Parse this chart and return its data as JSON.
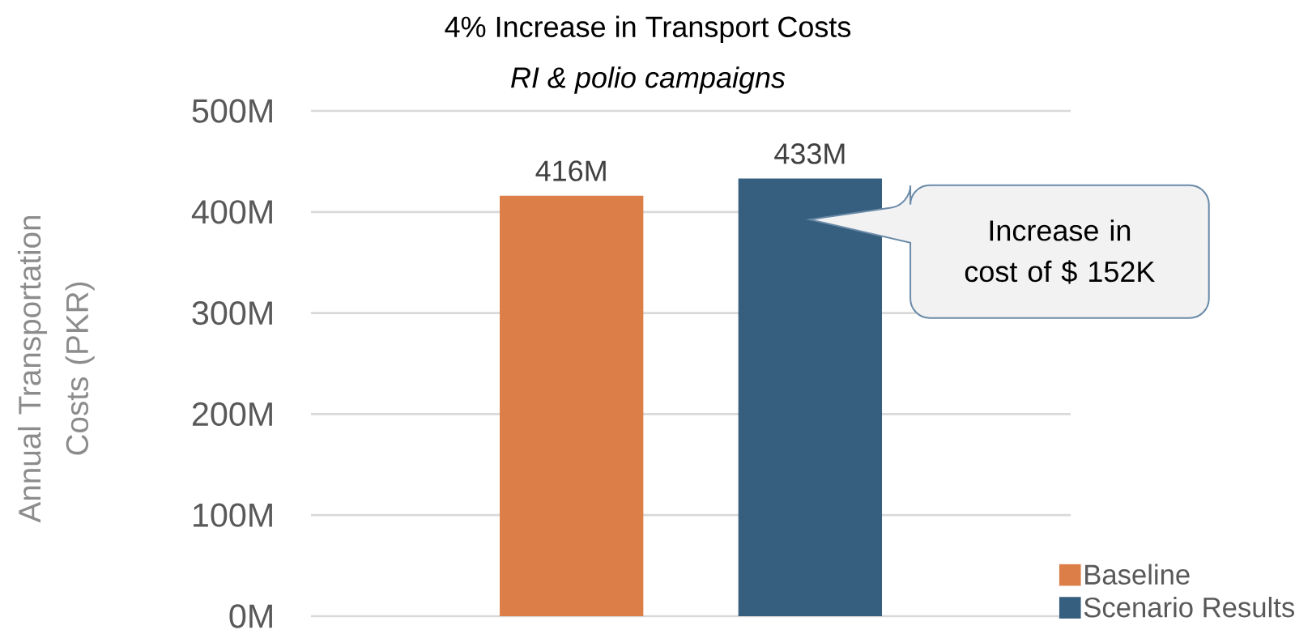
{
  "chart_data": {
    "type": "bar",
    "title": "4% Increase in Transport Costs",
    "subtitle": "RI & polio campaigns",
    "ylabel": "Annual Transportation Costs (PKR)",
    "categories": [
      null
    ],
    "series": [
      {
        "name": "Baseline",
        "color": "#dc7e47",
        "values": [
          416
        ],
        "value_labels": [
          "416M"
        ]
      },
      {
        "name": "Scenario Results",
        "color": "#365e7e",
        "values": [
          433
        ],
        "value_labels": [
          "433M"
        ]
      }
    ],
    "ylim": [
      0,
      500
    ],
    "yticks": [
      {
        "value": 0,
        "label": "0M"
      },
      {
        "value": 100,
        "label": "100M"
      },
      {
        "value": 200,
        "label": "200M"
      },
      {
        "value": 300,
        "label": "300M"
      },
      {
        "value": 400,
        "label": "400M"
      },
      {
        "value": 500,
        "label": "500M"
      }
    ],
    "grid": "y",
    "legend": "bottom right",
    "annotations": [
      "Increase in cost of $ 152K"
    ]
  }
}
